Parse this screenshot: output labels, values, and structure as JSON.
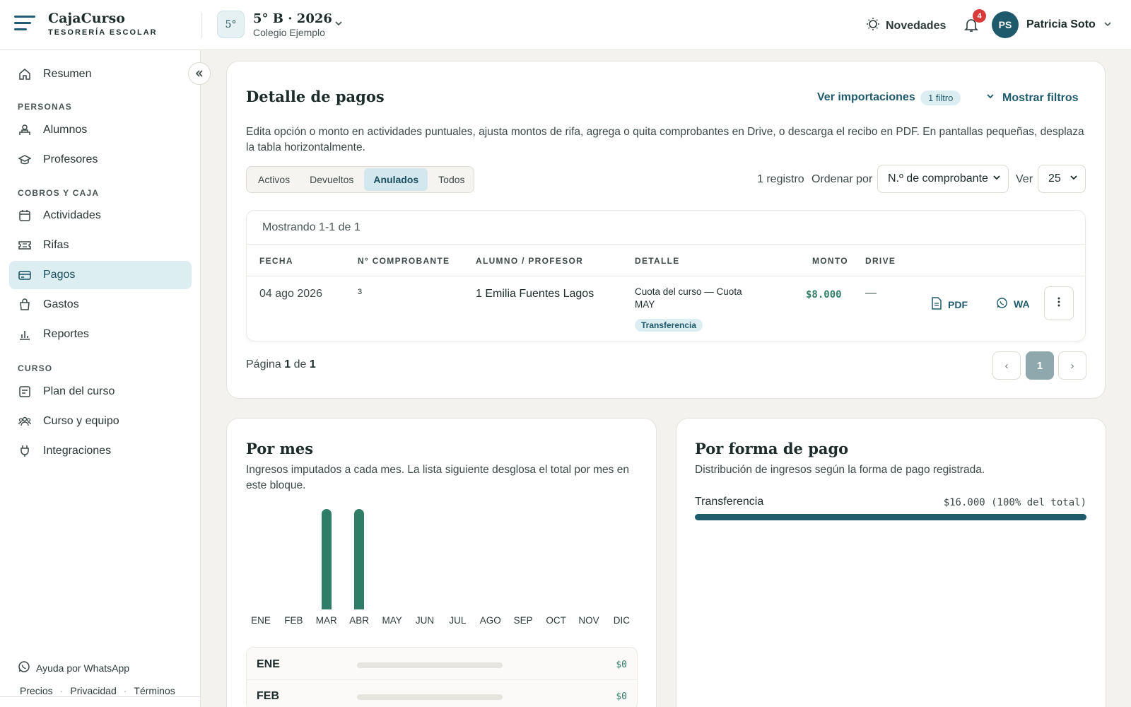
{
  "header": {
    "brand_name": "CajaCurso",
    "brand_sub": "TESORERÍA ESCOLAR",
    "course_badge": "5°",
    "course_name": "5° B · 2026",
    "school": "Colegio Ejemplo",
    "news_label": "Novedades",
    "notification_count": "4",
    "user_initials": "PS",
    "user_name": "Patricia Soto"
  },
  "sidebar": {
    "top_item": "Resumen",
    "sections": [
      {
        "title": "PERSONAS",
        "items": [
          "Alumnos",
          "Profesores"
        ]
      },
      {
        "title": "COBROS Y CAJA",
        "items": [
          "Actividades",
          "Rifas",
          "Pagos",
          "Gastos",
          "Reportes"
        ]
      },
      {
        "title": "CURSO",
        "items": [
          "Plan del curso",
          "Curso y equipo",
          "Integraciones"
        ]
      }
    ],
    "active_item": "Pagos",
    "help": "Ayuda por WhatsApp",
    "footer_links": [
      "Precios",
      "Privacidad",
      "Términos"
    ]
  },
  "payments": {
    "title": "Detalle de pagos",
    "imports_link": "Ver importaciones",
    "filter_pill": "1 filtro",
    "show_filters": "Mostrar filtros",
    "description": "Edita opción o monto en actividades puntuales, ajusta montos de rifa, agrega o quita comprobantes en Drive, o descarga el recibo en PDF. En pantallas pequeñas, desplaza la tabla horizontalmente.",
    "tabs": [
      "Activos",
      "Devueltos",
      "Anulados",
      "Todos"
    ],
    "active_tab": "Anulados",
    "record_count": "1 registro",
    "order_label": "Ordenar por",
    "order_value": "N.º de comprobante",
    "view_label": "Ver",
    "view_value": "25",
    "showing": "Mostrando 1-1 de 1",
    "columns": [
      "FECHA",
      "N° COMPROBANTE",
      "ALUMNO / PROFESOR",
      "DETALLE",
      "MONTO",
      "DRIVE"
    ],
    "rows": [
      {
        "date": "04 ago 2026",
        "receipt": "3",
        "person": "1 Emilia Fuentes Lagos",
        "detail_line1": "Cuota del curso — Cuota",
        "detail_line2": "MAY",
        "method": "Transferencia",
        "amount": "$8.000",
        "drive": "—",
        "pdf": "PDF",
        "wa": "WA"
      }
    ],
    "page_prefix": "Página",
    "page_current": "1",
    "page_of": "de",
    "page_total": "1",
    "pager_prev": "‹",
    "pager_next": "›"
  },
  "by_month": {
    "title": "Por mes",
    "description": "Ingresos imputados a cada mes. La lista siguiente desglosa el total por mes en este bloque.",
    "rows": [
      {
        "name": "ENE",
        "value": "$0"
      },
      {
        "name": "FEB",
        "value": "$0"
      }
    ]
  },
  "chart_data": {
    "type": "bar",
    "categories": [
      "ENE",
      "FEB",
      "MAR",
      "ABR",
      "MAY",
      "JUN",
      "JUL",
      "AGO",
      "SEP",
      "OCT",
      "NOV",
      "DIC"
    ],
    "values": [
      0,
      0,
      8000,
      8000,
      0,
      0,
      0,
      0,
      0,
      0,
      0,
      0
    ],
    "title": "",
    "color": "#2f7d66"
  },
  "by_method": {
    "title": "Por forma de pago",
    "description": "Distribución de ingresos según la forma de pago registrada.",
    "items": [
      {
        "name": "Transferencia",
        "value": "$16.000 (100% del total)",
        "share": 1.0
      }
    ]
  }
}
